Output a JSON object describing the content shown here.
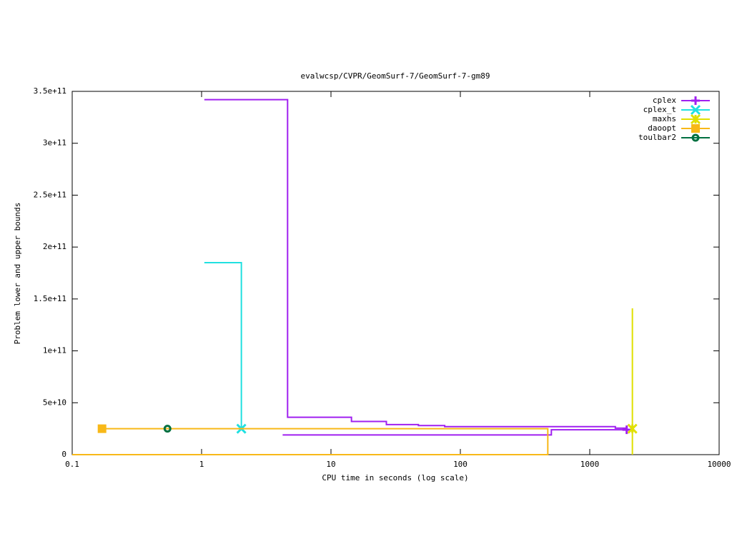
{
  "chart_data": {
    "type": "line",
    "title": "evalwcsp/CVPR/GeomSurf-7/GeomSurf-7-gm89",
    "x_label": "CPU time in seconds (log scale)",
    "y_label": "Problem lower and upper bounds",
    "x_log_scale": true,
    "xlim": [
      0.1,
      10000
    ],
    "xticks": [
      0.1,
      1,
      10,
      100,
      1000,
      10000
    ],
    "ylim": [
      0,
      350000000000
    ],
    "yticks": [
      0,
      {
        "value": 50000000000,
        "label": "5e+10"
      },
      {
        "value": 100000000000,
        "label": "1e+11"
      },
      {
        "value": 150000000000,
        "label": "1.5e+11"
      },
      {
        "value": 200000000000,
        "label": "2e+11"
      },
      {
        "value": 250000000000,
        "label": "2.5e+11"
      },
      {
        "value": 300000000000,
        "label": "3e+11"
      },
      {
        "value": 350000000000,
        "label": "3.5e+11"
      }
    ],
    "legend": "top-right",
    "series": [
      {
        "name": "cplex",
        "color": "#a020f0",
        "x": [
          1.05,
          4.62,
          4.62,
          14.4,
          14.4,
          26.8,
          26.8,
          47.4,
          47.4,
          75.7,
          75.7,
          1577,
          1577,
          1930,
          null,
          4.23,
          505,
          505,
          1930
        ],
        "values": [
          342000000000,
          342000000000,
          36000000000,
          36000000000,
          32000000000,
          32000000000,
          29000000000,
          29000000000,
          28000000000,
          28000000000,
          27000000000,
          27000000000,
          25500000000,
          25500000000,
          null,
          19000000000,
          19000000000,
          24000000000,
          24000000000
        ]
      },
      {
        "name": "cplex_t",
        "color": "#20e0e0",
        "x": [
          1.05,
          2.03,
          2.03
        ],
        "values": [
          185000000000,
          185000000000,
          25000000000
        ]
      },
      {
        "name": "maxhs",
        "color": "#e0e000",
        "x": [
          2136,
          2136,
          2136
        ],
        "values": [
          0,
          141000000000,
          25000000000
        ]
      },
      {
        "name": "daoopt",
        "color": "#f8b818",
        "x": [
          0.1,
          474,
          474,
          0.17
        ],
        "values": [
          0,
          0,
          25000000000,
          25000000000
        ]
      },
      {
        "name": "toulbar2",
        "color": "#007040",
        "x": [
          0.545
        ],
        "values": [
          25000000000
        ]
      }
    ]
  }
}
